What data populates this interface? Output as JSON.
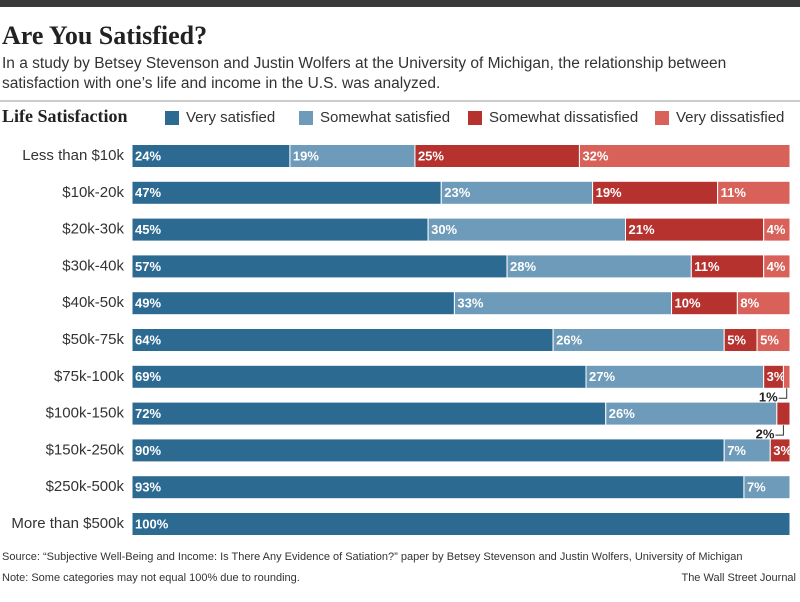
{
  "chart_data": {
    "type": "stacked-bar-horizontal",
    "title": "Are You Satisfied?",
    "subtitle": [
      "In a study by Betsey Stevenson and Justin Wolfers at the University of Michigan, the relationship between",
      "satisfaction with one’s life and income in the U.S. was analyzed."
    ],
    "legend_title": "Life Satisfaction",
    "categories": [
      "Less than $10k",
      "$10k-20k",
      "$20k-30k",
      "$30k-40k",
      "$40k-50k",
      "$50k-75k",
      "$75k-100k",
      "$100k-150k",
      "$150k-250k",
      "$250k-500k",
      "More than $500k"
    ],
    "xlim": [
      0,
      100
    ],
    "series": [
      {
        "name": "Very satisfied",
        "color": "#2d6a92",
        "values": [
          24,
          47,
          45,
          57,
          49,
          64,
          69,
          72,
          90,
          93,
          100
        ],
        "value_labels": [
          "24%",
          "47%",
          "45%",
          "57%",
          "49%",
          "64%",
          "69%",
          "72%",
          "90%",
          "93%",
          "100%"
        ]
      },
      {
        "name": "Somewhat satisfied",
        "color": "#6d9bb9",
        "values": [
          19,
          23,
          30,
          28,
          33,
          26,
          27,
          26,
          7,
          7,
          null
        ],
        "value_labels": [
          "19%",
          "23%",
          "30%",
          "28%",
          "33%",
          "26%",
          "27%",
          "26%",
          "7%",
          "7%",
          null
        ]
      },
      {
        "name": "Somewhat dissatisfied",
        "color": "#b6322e",
        "values": [
          25,
          19,
          21,
          11,
          10,
          5,
          3,
          2,
          3,
          null,
          null
        ],
        "value_labels": [
          "25%",
          "19%",
          "21%",
          "11%",
          "10%",
          "5%",
          "3%",
          "2%",
          "3%",
          null,
          null
        ]
      },
      {
        "name": "Very dissatisfied",
        "color": "#d8625a",
        "values": [
          32,
          11,
          4,
          4,
          8,
          5,
          1,
          null,
          null,
          null,
          null
        ],
        "value_labels": [
          "32%",
          "11%",
          "4%",
          "4%",
          "8%",
          "5%",
          "1%",
          null,
          null,
          null,
          null
        ]
      }
    ],
    "source": "Source: “Subjective Well-Being and Income: Is There Any Evidence of Satiation?” paper by Betsey Stevenson and Justin Wolfers, University of Michigan",
    "note": "Note: Some categories may not equal 100% due to rounding.",
    "credit": "The Wall Street Journal"
  }
}
